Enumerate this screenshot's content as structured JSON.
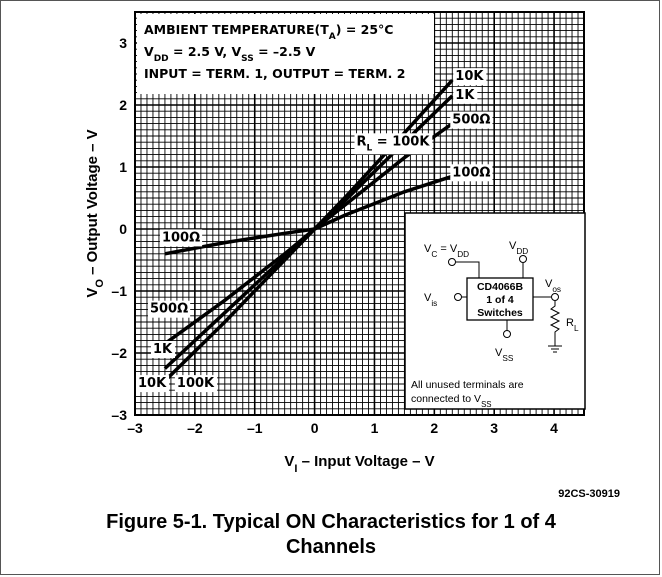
{
  "chart_data": {
    "type": "line",
    "xlabel": "V",
    "xlabel_sub": "I",
    "xlabel_rest": " – Input Voltage – V",
    "ylabel": "V",
    "ylabel_sub": "O",
    "ylabel_rest": " – Output Voltage – V",
    "xlim": [
      -3,
      4.5
    ],
    "ylim": [
      -3,
      3.5
    ],
    "x_ticks": [
      "–3",
      "–2",
      "–1",
      "0",
      "1",
      "2",
      "3",
      "4"
    ],
    "x_tick_values": [
      -3,
      -2,
      -1,
      0,
      1,
      2,
      3,
      4
    ],
    "y_ticks": [
      "3",
      "2",
      "1",
      "0",
      "–1",
      "–2",
      "–3"
    ],
    "y_tick_values": [
      3,
      2,
      1,
      0,
      -1,
      -2,
      -3
    ],
    "grid": true,
    "series": [
      {
        "name": "10K",
        "x": [
          -2.5,
          -1.5,
          -0.5,
          0,
          0.5,
          1.5,
          2.3
        ],
        "y": [
          -2.45,
          -1.5,
          -0.5,
          0,
          0.5,
          1.55,
          2.4
        ]
      },
      {
        "name": "1K",
        "x": [
          -2.5,
          -1.5,
          -0.5,
          0,
          0.5,
          1.5,
          2.3
        ],
        "y": [
          -2.25,
          -1.35,
          -0.45,
          0,
          0.45,
          1.4,
          2.15
        ]
      },
      {
        "name": "500Ω",
        "x": [
          -2.5,
          -1.5,
          -0.5,
          0,
          0.5,
          1.5,
          2.3
        ],
        "y": [
          -1.85,
          -1.15,
          -0.4,
          0,
          0.38,
          1.15,
          1.7
        ]
      },
      {
        "name": "100Ω",
        "x": [
          -2.5,
          -1.5,
          -0.5,
          0,
          0.5,
          1.5,
          2.3
        ],
        "y": [
          -0.4,
          -0.22,
          -0.07,
          0,
          0.22,
          0.6,
          0.85
        ]
      }
    ],
    "curve_labels": [
      {
        "text": "10K",
        "x": 2.35,
        "y": 2.4
      },
      {
        "text": "1K",
        "x": 2.35,
        "y": 2.1
      },
      {
        "text": "500Ω",
        "x": 2.3,
        "y": 1.7
      },
      {
        "text": "100Ω",
        "x": 2.3,
        "y": 0.85
      },
      {
        "text": "R",
        "sub": "L",
        "rest": " = 100K",
        "x": 0.7,
        "y": 1.35
      },
      {
        "text": "100Ω",
        "x": -2.55,
        "y": -0.2
      },
      {
        "text": "500Ω",
        "x": -2.75,
        "y": -1.35
      },
      {
        "text": "1K",
        "x": -2.7,
        "y": -2.0
      },
      {
        "text": "10K",
        "x": -2.95,
        "y": -2.55
      },
      {
        "text": "100K",
        "x": -2.3,
        "y": -2.55
      }
    ],
    "annotation_lines": [
      {
        "parts": [
          [
            "AMBIENT TEMPERATURE(T",
            ""
          ],
          [
            "A",
            "sub"
          ],
          [
            ") = 25°C",
            ""
          ]
        ]
      },
      {
        "parts": [
          [
            "V",
            ""
          ],
          [
            "DD",
            "sub"
          ],
          [
            " = 2.5 V, V",
            ""
          ],
          [
            "SS",
            "sub"
          ],
          [
            " = –2.5 V",
            ""
          ]
        ]
      },
      {
        "parts": [
          [
            "INPUT = TERM. 1, OUTPUT = TERM. 2",
            ""
          ]
        ]
      }
    ],
    "inset": {
      "vc_label": [
        "V",
        "C",
        " = V",
        "DD"
      ],
      "vdd_label": [
        "V",
        "DD"
      ],
      "vis_label": [
        "V",
        "is"
      ],
      "vos_label": [
        "V",
        "os"
      ],
      "vss_label": [
        "V",
        "SS"
      ],
      "rl_label": [
        "R",
        "L"
      ],
      "chip_lines": [
        "CD4066B",
        "1 of 4",
        "Switches"
      ],
      "note_line1": "All unused terminals are",
      "note_line2": [
        "connected to V",
        "SS"
      ]
    },
    "colors": {
      "grid": "#000000",
      "curve": "#000000",
      "background": "#ffffff"
    }
  },
  "reference_code": "92CS-30919",
  "caption_line1": "Figure 5-1. Typical ON Characteristics for 1 of 4",
  "caption_line2": "Channels"
}
